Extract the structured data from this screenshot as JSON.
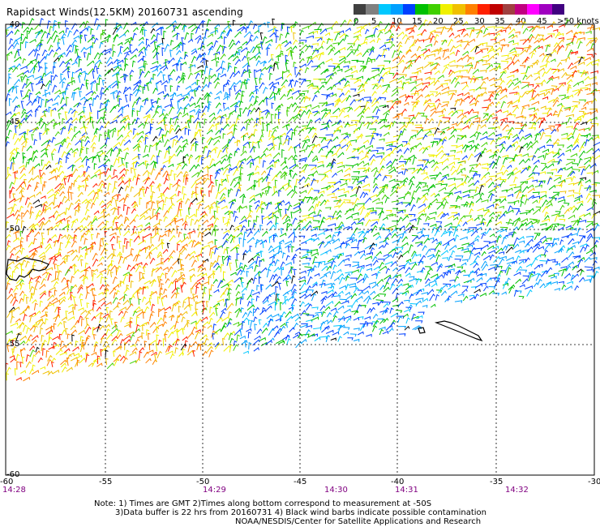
{
  "title": "Rapidsact Winds(12.5KM) 20160731 ascending",
  "legend": {
    "colors": [
      "#404040",
      "#808080",
      "#00c8ff",
      "#00a0ff",
      "#0040ff",
      "#00c000",
      "#40d000",
      "#f0f000",
      "#f0c000",
      "#ff8000",
      "#ff2000",
      "#c00000",
      "#a04040",
      "#c00080",
      "#ff00ff",
      "#a000c0",
      "#400080"
    ],
    "labels": [
      "0",
      "5",
      "10",
      "15",
      "20",
      "25",
      "30",
      "35",
      "40",
      "45",
      ">50 knots"
    ]
  },
  "map": {
    "lat_labels": [
      "-40",
      "-45",
      "-50",
      "-55",
      "-60"
    ],
    "lon_labels": [
      "-60",
      "-55",
      "-50",
      "-45",
      "-40",
      "-35",
      "-30"
    ],
    "time_labels": [
      "14:28",
      "14:29",
      "14:30",
      "14:31",
      "14:32"
    ]
  },
  "notes": {
    "line1": "Note: 1) Times are GMT 2)Times along bottom correspond to measurement at -50S",
    "line2": "3)Data buffer is 22 hrs from 20160731 4) Black wind barbs indicate possible contamination",
    "line3": "NOAA/NESDIS/Center for Satellite Applications and Research"
  }
}
